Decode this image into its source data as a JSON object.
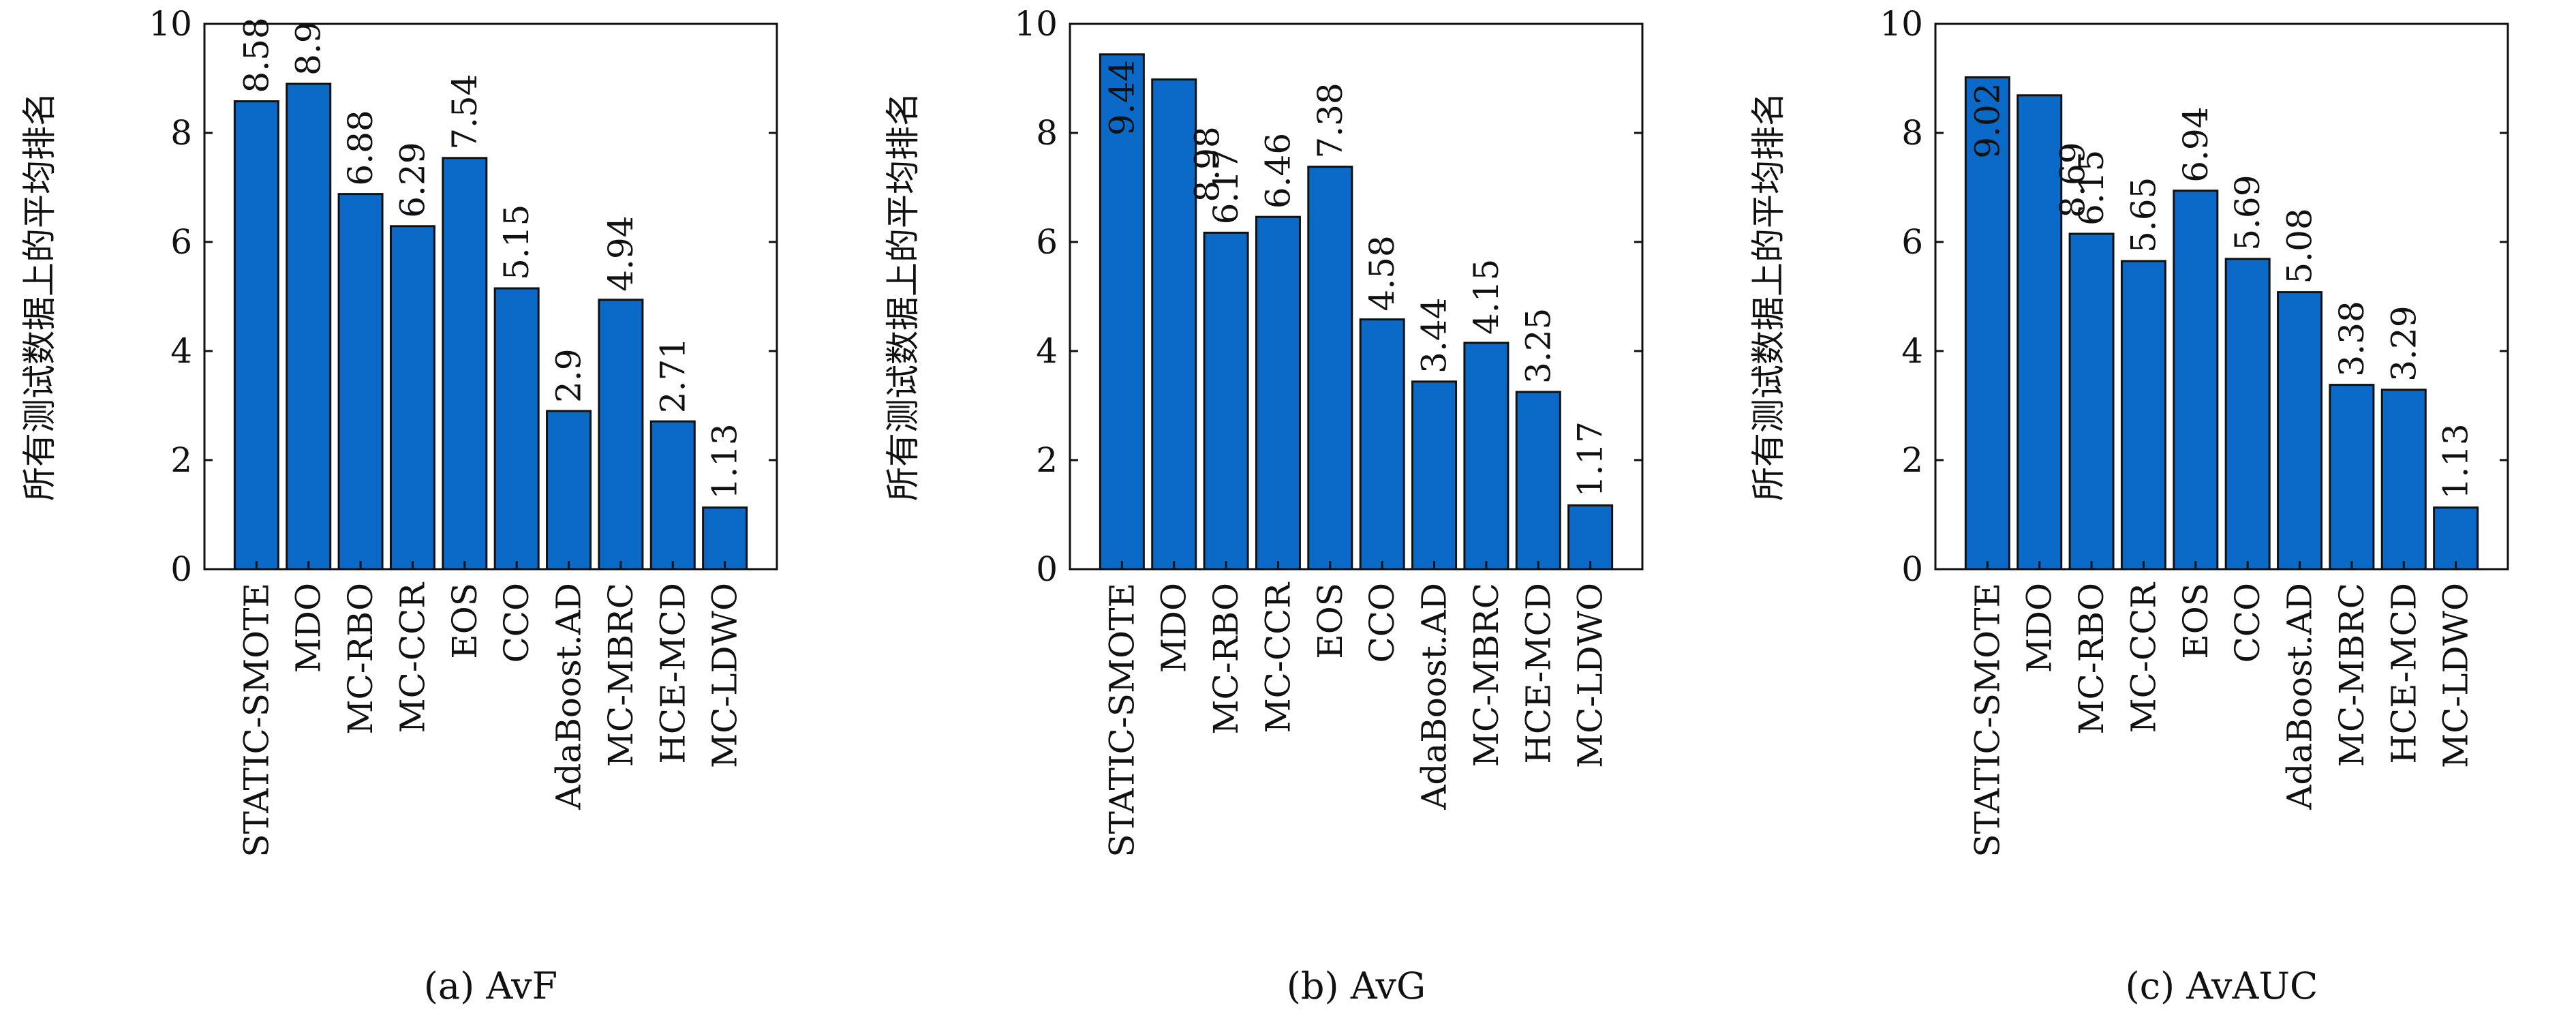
{
  "chart_data": [
    {
      "type": "bar",
      "caption": "(a) AvF",
      "ylabel": "所有测试数据上的平均排名",
      "ylim": [
        0,
        10
      ],
      "yticks": [
        "0",
        "2",
        "4",
        "6",
        "8",
        "10"
      ],
      "categories": [
        "STATIC-SMOTE",
        "MDO",
        "MC-RBO",
        "MC-CCR",
        "EOS",
        "CCO",
        "AdaBoost.AD",
        "MC-MBRC",
        "HCE-MCD",
        "MC-LDWO"
      ],
      "values": [
        8.58,
        8.9,
        6.88,
        6.29,
        7.54,
        5.15,
        2.9,
        4.94,
        2.71,
        1.13
      ],
      "value_labels": [
        "8.58",
        "8.9",
        "6.88",
        "6.29",
        "7.54",
        "5.15",
        "2.9",
        "4.94",
        "2.71",
        "1.13"
      ],
      "label_position": [
        "top",
        "top",
        "top",
        "top",
        "top",
        "top",
        "top",
        "top",
        "top",
        "top"
      ],
      "bar_color": "#0b6ac8",
      "grid": false
    },
    {
      "type": "bar",
      "caption": "(b) AvG",
      "ylabel": "所有测试数据上的平均排名",
      "ylim": [
        0,
        10
      ],
      "yticks": [
        "0",
        "2",
        "4",
        "6",
        "8",
        "10"
      ],
      "categories": [
        "STATIC-SMOTE",
        "MDO",
        "MC-RBO",
        "MC-CCR",
        "EOS",
        "CCO",
        "AdaBoost.AD",
        "MC-MBRC",
        "HCE-MCD",
        "MC-LDWO"
      ],
      "values": [
        9.44,
        8.98,
        6.17,
        6.46,
        7.38,
        4.58,
        3.44,
        4.15,
        3.25,
        1.17
      ],
      "value_labels": [
        "9.44",
        "8.98",
        "6.17",
        "6.46",
        "7.38",
        "4.58",
        "3.44",
        "4.15",
        "3.25",
        "1.17"
      ],
      "label_position": [
        "below",
        "beside",
        "top",
        "top",
        "top",
        "top",
        "top",
        "top",
        "top",
        "top"
      ],
      "bar_color": "#0b6ac8",
      "grid": false
    },
    {
      "type": "bar",
      "caption": "(c) AvAUC",
      "ylabel": "所有测试数据上的平均排名",
      "ylim": [
        0,
        10
      ],
      "yticks": [
        "0",
        "2",
        "4",
        "6",
        "8",
        "10"
      ],
      "categories": [
        "STATIC-SMOTE",
        "MDO",
        "MC-RBO",
        "MC-CCR",
        "EOS",
        "CCO",
        "AdaBoost.AD",
        "MC-MBRC",
        "HCE-MCD",
        "MC-LDWO"
      ],
      "values": [
        9.02,
        8.69,
        6.15,
        5.65,
        6.94,
        5.69,
        5.08,
        3.38,
        3.29,
        1.13
      ],
      "value_labels": [
        "9.02",
        "8.69",
        "6.15",
        "5.65",
        "6.94",
        "5.69",
        "5.08",
        "3.38",
        "3.29",
        "1.13"
      ],
      "label_position": [
        "below",
        "beside",
        "top",
        "top",
        "top",
        "top",
        "top",
        "top",
        "top",
        "top"
      ],
      "bar_color": "#0b6ac8",
      "grid": false
    }
  ]
}
